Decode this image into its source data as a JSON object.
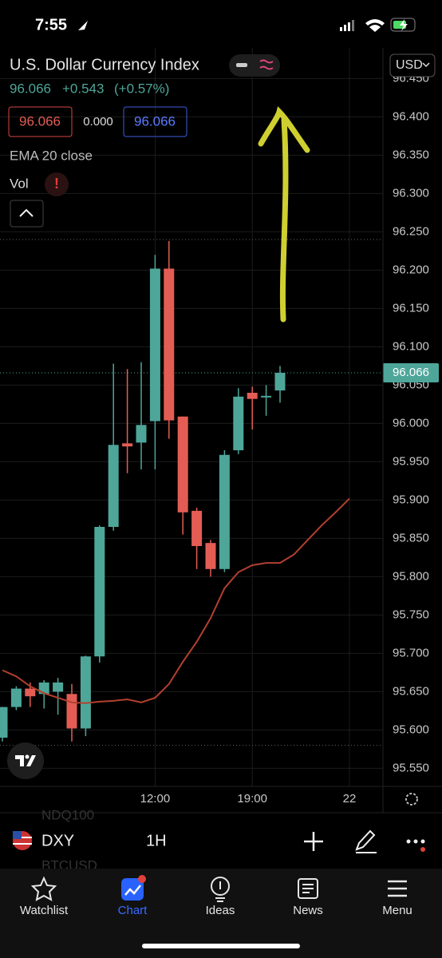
{
  "status_bar": {
    "time": "7:55"
  },
  "header": {
    "title": "U.S. Dollar Currency Index",
    "price": "96.066",
    "change": "+0.543",
    "change_percent": "(+0.57%)",
    "currency": "USD",
    "ohlc_boxes": [
      "96.066",
      "0.000",
      "96.066"
    ],
    "indicator": "EMA 20 close",
    "volume": "Vol"
  },
  "chart_data": {
    "type": "candlestick",
    "categories": [
      null,
      null,
      null,
      null,
      null,
      null,
      null,
      null,
      null,
      null,
      null,
      "12:00",
      null,
      null,
      null,
      null,
      null,
      null,
      "19:00",
      null,
      null,
      null,
      null,
      null,
      null,
      "22"
    ],
    "open": [
      95.59,
      95.63,
      95.654,
      95.647,
      95.65,
      95.647,
      95.602,
      95.696,
      95.865,
      95.974,
      95.975,
      96.003,
      96.202,
      96.009,
      95.886,
      95.844,
      95.81,
      95.965,
      96.04,
      96.034,
      96.043,
      null,
      null,
      null,
      null,
      null
    ],
    "high": [
      95.63,
      95.657,
      95.662,
      95.665,
      95.668,
      95.66,
      95.697,
      95.867,
      96.078,
      96.071,
      96.08,
      96.22,
      96.238,
      96.009,
      95.89,
      95.848,
      95.965,
      96.046,
      96.048,
      96.05,
      96.075,
      null,
      null,
      null,
      null,
      null
    ],
    "low": [
      95.585,
      95.626,
      95.63,
      95.628,
      95.62,
      95.585,
      95.592,
      95.688,
      95.86,
      95.935,
      95.94,
      95.94,
      95.98,
      95.855,
      95.81,
      95.8,
      95.806,
      95.96,
      95.992,
      96.01,
      96.027,
      null,
      null,
      null,
      null,
      null
    ],
    "close": [
      95.63,
      95.654,
      95.644,
      95.662,
      95.662,
      95.602,
      95.696,
      95.865,
      95.972,
      95.97,
      95.998,
      96.202,
      96.004,
      95.884,
      95.84,
      95.81,
      95.959,
      96.035,
      96.032,
      96.036,
      96.066,
      null,
      null,
      null,
      null,
      null
    ],
    "up_color": "#4ea699",
    "down_color": "#e35d55",
    "ema": {
      "color": "#b3402f",
      "values": [
        95.678,
        95.67,
        95.657,
        95.648,
        95.642,
        95.636,
        95.635,
        95.637,
        95.638,
        95.64,
        95.636,
        95.642,
        95.66,
        95.689,
        95.715,
        95.746,
        95.785,
        95.806,
        95.815,
        95.818,
        95.818,
        95.829,
        95.848,
        95.867,
        95.884,
        95.902
      ]
    },
    "last_price": {
      "value": 96.066,
      "label": "96.066"
    },
    "high_line": 96.24,
    "low_line": 95.58,
    "ylim": [
      95.52,
      96.49
    ],
    "yticks": [
      {
        "value": 95.55,
        "label": "95.550"
      },
      {
        "value": 95.6,
        "label": "95.600"
      },
      {
        "value": 95.65,
        "label": "95.650"
      },
      {
        "value": 95.7,
        "label": "95.700"
      },
      {
        "value": 95.75,
        "label": "95.750"
      },
      {
        "value": 95.8,
        "label": "95.800"
      },
      {
        "value": 95.85,
        "label": "95.850"
      },
      {
        "value": 95.9,
        "label": "95.900"
      },
      {
        "value": 95.95,
        "label": "95.950"
      },
      {
        "value": 96.0,
        "label": "96.000"
      },
      {
        "value": 96.05,
        "label": "96.050"
      },
      {
        "value": 96.1,
        "label": "96.100"
      },
      {
        "value": 96.15,
        "label": "96.150"
      },
      {
        "value": 96.2,
        "label": "96.200"
      },
      {
        "value": 96.25,
        "label": "96.250"
      },
      {
        "value": 96.3,
        "label": "96.300"
      },
      {
        "value": 96.35,
        "label": "96.350"
      },
      {
        "value": 96.4,
        "label": "96.400"
      },
      {
        "value": 96.45,
        "label": "96.450"
      }
    ],
    "grid": true
  },
  "toolbar": {
    "symbol": "DXY",
    "interval": "1H",
    "ghost_symbols": [
      "NDQ100",
      "BTCUSD"
    ]
  },
  "tabs": [
    "Watchlist",
    "Chart",
    "Ideas",
    "News",
    "Menu"
  ]
}
